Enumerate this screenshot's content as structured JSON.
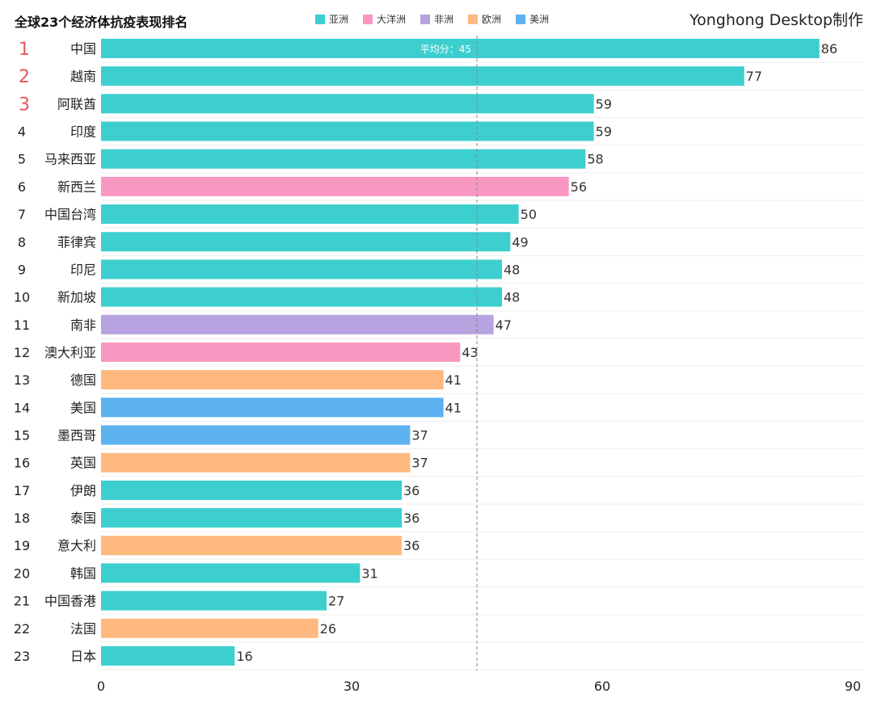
{
  "title": "全球23个经济体抗疫表现排名",
  "brand": "Yonghong Desktop制作",
  "legend": [
    {
      "name": "亚洲",
      "color": "#3dcfcf"
    },
    {
      "name": "大洋洲",
      "color": "#f898c1"
    },
    {
      "name": "非洲",
      "color": "#b7a3e0"
    },
    {
      "name": "欧洲",
      "color": "#ffb97f"
    },
    {
      "name": "美洲",
      "color": "#5bb2ef"
    }
  ],
  "chart_data": {
    "type": "bar",
    "orientation": "horizontal",
    "title": "全球23个经济体抗疫表现排名",
    "categories": [
      "中国",
      "越南",
      "阿联酋",
      "印度",
      "马来西亚",
      "新西兰",
      "中国台湾",
      "菲律宾",
      "印尼",
      "新加坡",
      "南非",
      "澳大利亚",
      "德国",
      "美国",
      "墨西哥",
      "英国",
      "伊朗",
      "泰国",
      "意大利",
      "韩国",
      "中国香港",
      "法国",
      "日本"
    ],
    "ranks": [
      "1",
      "2",
      "3",
      "4",
      "5",
      "6",
      "7",
      "8",
      "9",
      "10",
      "11",
      "12",
      "13",
      "14",
      "15",
      "16",
      "17",
      "18",
      "19",
      "20",
      "21",
      "22",
      "23"
    ],
    "values": [
      86,
      77,
      59,
      59,
      58,
      56,
      50,
      49,
      48,
      48,
      47,
      43,
      41,
      41,
      37,
      37,
      36,
      36,
      36,
      31,
      27,
      26,
      16
    ],
    "groups": [
      "亚洲",
      "亚洲",
      "亚洲",
      "亚洲",
      "亚洲",
      "大洋洲",
      "亚洲",
      "亚洲",
      "亚洲",
      "亚洲",
      "非洲",
      "大洋洲",
      "欧洲",
      "美洲",
      "美洲",
      "欧洲",
      "亚洲",
      "亚洲",
      "欧洲",
      "亚洲",
      "亚洲",
      "欧洲",
      "亚洲"
    ],
    "xlim": [
      0,
      90
    ],
    "xticks": [
      "0",
      "30",
      "60",
      "90"
    ],
    "reference_line": {
      "value": 45,
      "label": "平均分：45"
    },
    "top_rank_color": "#e8575a",
    "legend_position": "top"
  }
}
